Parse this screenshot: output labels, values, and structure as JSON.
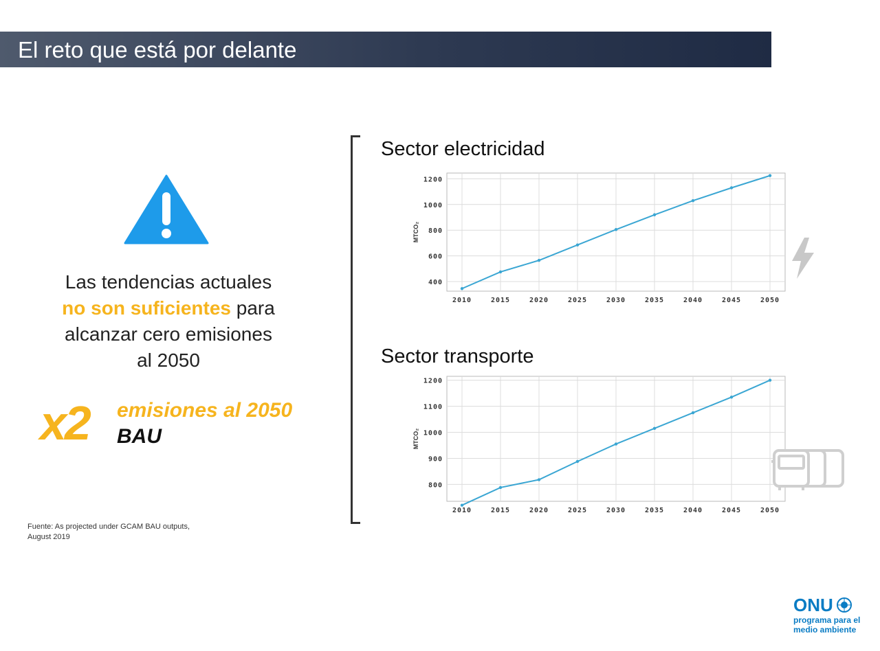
{
  "header": {
    "title": "El reto que está por delante"
  },
  "left": {
    "text_line1": "Las tendencias actuales",
    "text_highlight": "no son suficientes",
    "text_after_highlight": " para",
    "text_line3": "alcanzar cero emisiones",
    "text_line4": "al 2050",
    "multiplier": "x2",
    "multiplier_line1": "emisiones al 2050",
    "multiplier_line2": "BAU",
    "source_line1": "Fuente: As projected under GCAM BAU outputs,",
    "source_line2": "August 2019"
  },
  "icons": {
    "warning": "warning-triangle-icon",
    "electricity": "lightning-bolt-icon",
    "transport": "bus-icon",
    "logo_globe": "un-emblem-icon"
  },
  "colors": {
    "accent": "#f6b41e",
    "line": "#3aa6d3",
    "warning": "#1e9bea",
    "brand": "#0a7cc4"
  },
  "logo": {
    "name": "ONU",
    "sub_line1": "programa para el",
    "sub_line2": "medio ambiente"
  },
  "chart_data": [
    {
      "type": "line",
      "title": "Sector electricidad",
      "ylabel": "MTCO₂",
      "x": [
        2010,
        2015,
        2020,
        2025,
        2030,
        2035,
        2040,
        2045,
        2050
      ],
      "xticks": [
        2010,
        2015,
        2020,
        2025,
        2030,
        2035,
        2040,
        2045,
        2050
      ],
      "yticks": [
        400,
        600,
        800,
        1000,
        1200
      ],
      "ylim": [
        325,
        1245
      ],
      "series": [
        {
          "values": [
            345,
            475,
            565,
            685,
            805,
            920,
            1030,
            1130,
            1225
          ]
        }
      ],
      "grid": true
    },
    {
      "type": "line",
      "title": "Sector transporte",
      "ylabel": "MTCO₂",
      "x": [
        2010,
        2015,
        2020,
        2025,
        2030,
        2035,
        2040,
        2045,
        2050
      ],
      "xticks": [
        2010,
        2015,
        2020,
        2025,
        2030,
        2035,
        2040,
        2045,
        2050
      ],
      "yticks": [
        800,
        900,
        1000,
        1100,
        1200
      ],
      "ylim": [
        735,
        1215
      ],
      "series": [
        {
          "values": [
            720,
            788,
            818,
            888,
            955,
            1015,
            1075,
            1135,
            1200
          ]
        }
      ],
      "grid": true
    }
  ]
}
